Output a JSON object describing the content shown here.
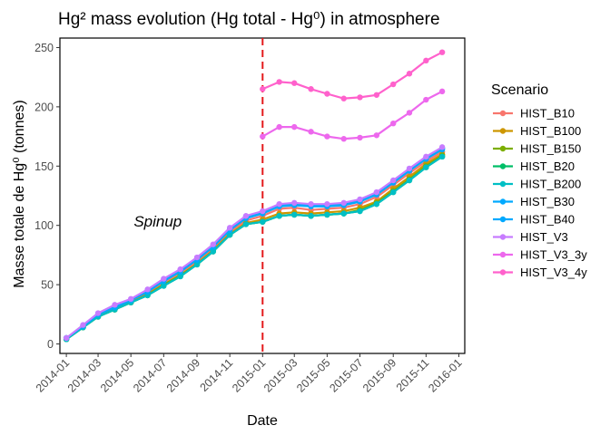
{
  "chart_data": {
    "type": "line",
    "title": "Hg² mass evolution (Hg total - Hg⁰) in atmosphere",
    "xlabel": "Date",
    "ylabel": "Masse totale de Hg⁰ (tonnes)",
    "x_ticks": [
      "2014-01",
      "2014-03",
      "2014-05",
      "2014-07",
      "2014-09",
      "2014-11",
      "2015-01",
      "2015-03",
      "2015-05",
      "2015-07",
      "2015-09",
      "2015-11",
      "2016-01"
    ],
    "y_ticks": [
      0,
      50,
      100,
      150,
      200,
      250
    ],
    "xlim": [
      "2013-12-20",
      "2016-01-12"
    ],
    "ylim": [
      -8,
      258
    ],
    "grid": false,
    "legend_title": "Scenario",
    "legend_position": "right",
    "vline": {
      "x": "2015-01-01",
      "color": "#e41a1c",
      "style": "dashed"
    },
    "annotation": {
      "text": "Spinup",
      "x": "2014-06-20",
      "y": 99
    },
    "series": [
      {
        "name": "HIST_B10",
        "color": "#F8766D",
        "x": [
          "2014-01-01",
          "2014-02-01",
          "2014-03-01",
          "2014-04-01",
          "2014-05-01",
          "2014-06-01",
          "2014-07-01",
          "2014-08-01",
          "2014-09-01",
          "2014-10-01",
          "2014-11-01",
          "2014-12-01",
          "2015-01-01",
          "2015-02-01",
          "2015-03-01",
          "2015-04-01",
          "2015-05-01",
          "2015-06-01",
          "2015-07-01",
          "2015-08-01",
          "2015-09-01",
          "2015-10-01",
          "2015-11-01",
          "2015-12-01"
        ],
        "y": [
          5,
          15,
          24,
          30,
          36,
          43,
          52,
          60,
          70,
          81,
          95,
          104,
          108,
          114,
          115,
          113,
          114,
          115,
          118,
          124,
          134,
          144,
          154,
          162
        ]
      },
      {
        "name": "HIST_B100",
        "color": "#CD9600",
        "x": [
          "2014-01-01",
          "2014-02-01",
          "2014-03-01",
          "2014-04-01",
          "2014-05-01",
          "2014-06-01",
          "2014-07-01",
          "2014-08-01",
          "2014-09-01",
          "2014-10-01",
          "2014-11-01",
          "2014-12-01",
          "2015-01-01",
          "2015-02-01",
          "2015-03-01",
          "2015-04-01",
          "2015-05-01",
          "2015-06-01",
          "2015-07-01",
          "2015-08-01",
          "2015-09-01",
          "2015-10-01",
          "2015-11-01",
          "2015-12-01"
        ],
        "y": [
          4,
          14,
          23,
          29,
          35,
          42,
          50,
          58,
          68,
          79,
          93,
          102,
          105,
          110,
          111,
          110,
          111,
          112,
          115,
          120,
          131,
          141,
          152,
          160
        ]
      },
      {
        "name": "HIST_B150",
        "color": "#7CAE00",
        "x": [
          "2014-01-01",
          "2014-02-01",
          "2014-03-01",
          "2014-04-01",
          "2014-05-01",
          "2014-06-01",
          "2014-07-01",
          "2014-08-01",
          "2014-09-01",
          "2014-10-01",
          "2014-11-01",
          "2014-12-01",
          "2015-01-01",
          "2015-02-01",
          "2015-03-01",
          "2015-04-01",
          "2015-05-01",
          "2015-06-01",
          "2015-07-01",
          "2015-08-01",
          "2015-09-01",
          "2015-10-01",
          "2015-11-01",
          "2015-12-01"
        ],
        "y": [
          4,
          14,
          23,
          29,
          35,
          41,
          50,
          58,
          67,
          78,
          92,
          101,
          103,
          108,
          109,
          108,
          109,
          110,
          113,
          119,
          129,
          139,
          150,
          159
        ]
      },
      {
        "name": "HIST_B20",
        "color": "#00BE67",
        "x": [
          "2014-01-01",
          "2014-02-01",
          "2014-03-01",
          "2014-04-01",
          "2014-05-01",
          "2014-06-01",
          "2014-07-01",
          "2014-08-01",
          "2014-09-01",
          "2014-10-01",
          "2014-11-01",
          "2014-12-01",
          "2015-01-01",
          "2015-02-01",
          "2015-03-01",
          "2015-04-01",
          "2015-05-01",
          "2015-06-01",
          "2015-07-01",
          "2015-08-01",
          "2015-09-01",
          "2015-10-01",
          "2015-11-01",
          "2015-12-01"
        ],
        "y": [
          4,
          14,
          23,
          29,
          35,
          41,
          49,
          57,
          67,
          78,
          92,
          101,
          103,
          108,
          109,
          108,
          109,
          110,
          112,
          118,
          128,
          138,
          149,
          158
        ]
      },
      {
        "name": "HIST_B200",
        "color": "#00BFC4",
        "x": [
          "2014-01-01",
          "2014-02-01",
          "2014-03-01",
          "2014-04-01",
          "2014-05-01",
          "2014-06-01",
          "2014-07-01",
          "2014-08-01",
          "2014-09-01",
          "2014-10-01",
          "2014-11-01",
          "2014-12-01",
          "2015-01-01",
          "2015-02-01",
          "2015-03-01",
          "2015-04-01",
          "2015-05-01",
          "2015-06-01",
          "2015-07-01",
          "2015-08-01",
          "2015-09-01",
          "2015-10-01",
          "2015-11-01",
          "2015-12-01"
        ],
        "y": [
          4,
          14,
          23,
          29,
          35,
          41,
          49,
          57,
          67,
          78,
          92,
          101,
          103,
          108,
          109,
          108,
          109,
          110,
          112,
          118,
          128,
          138,
          149,
          158
        ]
      },
      {
        "name": "HIST_B30",
        "color": "#00A9FF",
        "x": [
          "2014-01-01",
          "2014-02-01",
          "2014-03-01",
          "2014-04-01",
          "2014-05-01",
          "2014-06-01",
          "2014-07-01",
          "2014-08-01",
          "2014-09-01",
          "2014-10-01",
          "2014-11-01",
          "2014-12-01",
          "2015-01-01",
          "2015-02-01",
          "2015-03-01",
          "2015-04-01",
          "2015-05-01",
          "2015-06-01",
          "2015-07-01",
          "2015-08-01",
          "2015-09-01",
          "2015-10-01",
          "2015-11-01",
          "2015-12-01"
        ],
        "y": [
          5,
          15,
          25,
          31,
          37,
          44,
          53,
          61,
          71,
          82,
          96,
          106,
          110,
          116,
          117,
          116,
          116,
          117,
          120,
          126,
          136,
          146,
          156,
          164
        ]
      },
      {
        "name": "HIST_B40",
        "color": "#00A9FF",
        "x": [
          "2014-01-01",
          "2014-02-01",
          "2014-03-01",
          "2014-04-01",
          "2014-05-01",
          "2014-06-01",
          "2014-07-01",
          "2014-08-01",
          "2014-09-01",
          "2014-10-01",
          "2014-11-01",
          "2014-12-01",
          "2015-01-01",
          "2015-02-01",
          "2015-03-01",
          "2015-04-01",
          "2015-05-01",
          "2015-06-01",
          "2015-07-01",
          "2015-08-01",
          "2015-09-01",
          "2015-10-01",
          "2015-11-01",
          "2015-12-01"
        ],
        "y": [
          5,
          15,
          25,
          31,
          37,
          45,
          54,
          62,
          72,
          83,
          97,
          107,
          111,
          117,
          118,
          117,
          117,
          118,
          121,
          127,
          137,
          147,
          157,
          165
        ]
      },
      {
        "name": "HIST_V3",
        "color": "#C77CFF",
        "x": [
          "2014-01-01",
          "2014-02-01",
          "2014-03-01",
          "2014-04-01",
          "2014-05-01",
          "2014-06-01",
          "2014-07-01",
          "2014-08-01",
          "2014-09-01",
          "2014-10-01",
          "2014-11-01",
          "2014-12-01",
          "2015-01-01",
          "2015-02-01",
          "2015-03-01",
          "2015-04-01",
          "2015-05-01",
          "2015-06-01",
          "2015-07-01",
          "2015-08-01",
          "2015-09-01",
          "2015-10-01",
          "2015-11-01",
          "2015-12-01"
        ],
        "y": [
          5,
          16,
          26,
          33,
          38,
          46,
          55,
          63,
          73,
          84,
          98,
          108,
          112,
          118,
          119,
          118,
          118,
          119,
          122,
          128,
          138,
          148,
          158,
          166
        ]
      },
      {
        "name": "HIST_V3_3y",
        "color": "#ED68ED",
        "x": [
          "2015-01-01",
          "2015-02-01",
          "2015-03-01",
          "2015-04-01",
          "2015-05-01",
          "2015-06-01",
          "2015-07-01",
          "2015-08-01",
          "2015-09-01",
          "2015-10-01",
          "2015-11-01",
          "2015-12-01"
        ],
        "y": [
          175,
          183,
          183,
          179,
          175,
          173,
          174,
          176,
          186,
          195,
          206,
          213
        ]
      },
      {
        "name": "HIST_V3_4y",
        "color": "#FF61CC",
        "x": [
          "2015-01-01",
          "2015-02-01",
          "2015-03-01",
          "2015-04-01",
          "2015-05-01",
          "2015-06-01",
          "2015-07-01",
          "2015-08-01",
          "2015-09-01",
          "2015-10-01",
          "2015-11-01",
          "2015-12-01"
        ],
        "y": [
          215,
          221,
          220,
          215,
          211,
          207,
          208,
          210,
          219,
          228,
          239,
          246
        ]
      }
    ]
  }
}
